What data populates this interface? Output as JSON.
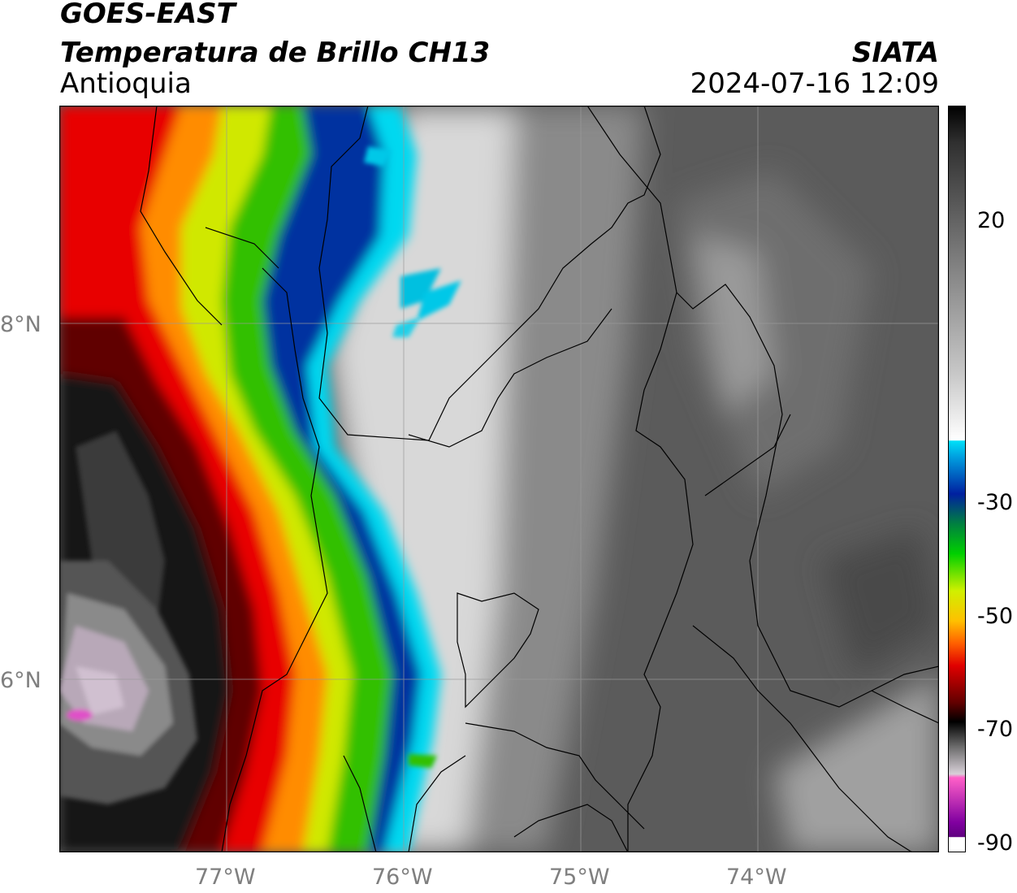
{
  "header": {
    "line1": "GOES-EAST",
    "line2": "Temperatura de Brillo CH13",
    "line3": "Antioquia",
    "org": "SIATA",
    "timestamp": "2024-07-16 12:09"
  },
  "axes": {
    "lon_ticks": [
      "77°W",
      "76°W",
      "75°W",
      "74°W"
    ],
    "lat_ticks": [
      "8°N",
      "6°N"
    ]
  },
  "colorbar": {
    "ticks": [
      "20",
      "-30",
      "-50",
      "-70",
      "-90"
    ]
  },
  "colors": {
    "frame": "#000000",
    "tick_label": "#7f7f7f"
  }
}
